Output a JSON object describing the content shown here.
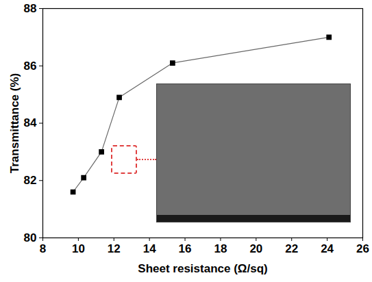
{
  "chart_data": {
    "type": "line",
    "x_label": "Sheet resistance (Ω/sq)",
    "y_label": "Transmittance (%)",
    "x": [
      9.7,
      10.3,
      11.3,
      12.3,
      15.3,
      24.1
    ],
    "values": [
      81.6,
      82.1,
      83.0,
      84.9,
      86.1,
      87.0
    ],
    "color": "#000000",
    "marker": "square",
    "line_style": "solid",
    "xlim": [
      8,
      26
    ],
    "xticks": [
      8,
      10,
      12,
      14,
      16,
      18,
      20,
      22,
      24,
      26
    ],
    "ylim": [
      80,
      88
    ],
    "yticks": [
      80,
      82,
      84,
      86,
      88
    ],
    "grid": false
  }
}
